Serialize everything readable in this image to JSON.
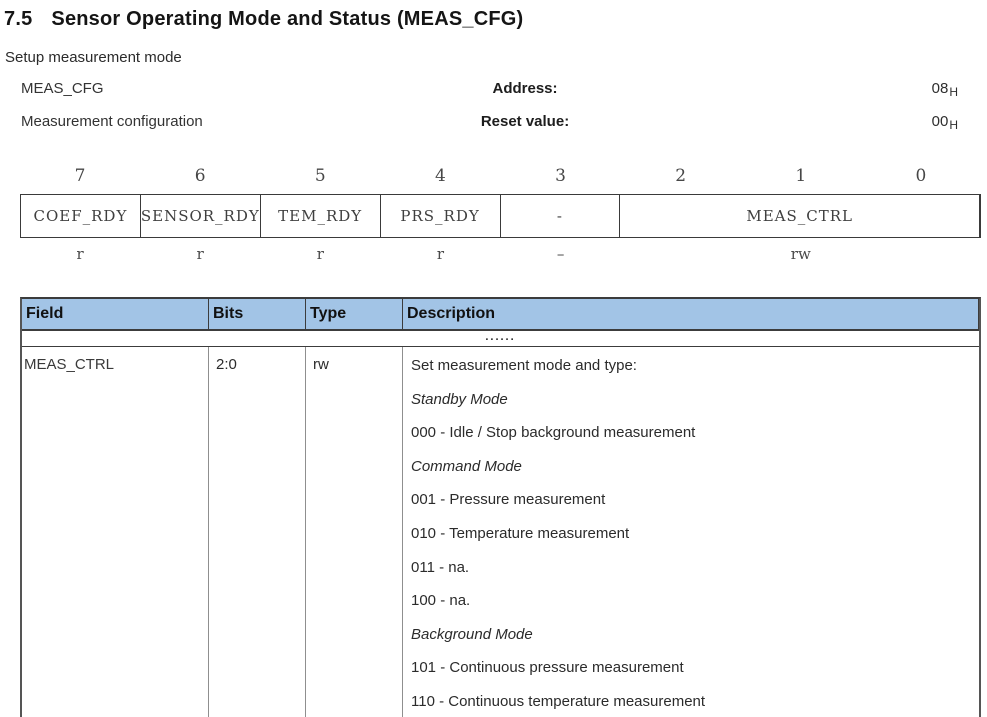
{
  "page": {
    "heading_number": "7.5",
    "heading_title": "Sensor Operating Mode and Status (MEAS_CFG)",
    "subtitle": "Setup measurement mode"
  },
  "register_info": {
    "rows": [
      {
        "label": "MEAS_CFG",
        "key": "Address:",
        "value": "08",
        "value_sub": "H"
      },
      {
        "label": "Measurement configuration",
        "key": "Reset value:",
        "value": "00",
        "value_sub": "H"
      }
    ]
  },
  "bitfield": {
    "bit_numbers": [
      "7",
      "6",
      "5",
      "4",
      "3",
      "2",
      "1",
      "0"
    ],
    "cells": [
      {
        "label": "COEF_RDY",
        "span": 1,
        "access": "r"
      },
      {
        "label": "SENSOR_RDY",
        "span": 1,
        "access": "r"
      },
      {
        "label": "TEM_RDY",
        "span": 1,
        "access": "r"
      },
      {
        "label": "PRS_RDY",
        "span": 1,
        "access": "r"
      },
      {
        "label": "-",
        "span": 1,
        "access": "–"
      },
      {
        "label": "MEAS_CTRL",
        "span": 3,
        "access": "rw"
      }
    ]
  },
  "table": {
    "headers": [
      "Field",
      "Bits",
      "Type",
      "Description"
    ],
    "ellipsis_row": "......",
    "row": {
      "field": "MEAS_CTRL",
      "bits": "2:0",
      "type": "rw",
      "description_lines": [
        {
          "text": "Set measurement mode and type:",
          "style": "normal"
        },
        {
          "text": "Standby Mode",
          "style": "italic"
        },
        {
          "text": "000 - Idle / Stop background measurement",
          "style": "normal"
        },
        {
          "text": "Command Mode",
          "style": "italic"
        },
        {
          "text": "001 - Pressure measurement",
          "style": "normal"
        },
        {
          "text": "010 - Temperature measurement",
          "style": "normal"
        },
        {
          "text": "011 - na.",
          "style": "normal"
        },
        {
          "text": "100 - na.",
          "style": "normal"
        },
        {
          "text": "Background Mode",
          "style": "italic"
        },
        {
          "text": "101 - Continuous pressure measurement",
          "style": "normal"
        },
        {
          "text": "110 - Continuous temperature measurement",
          "style": "normal"
        }
      ]
    }
  },
  "colors": {
    "table_header_bg": "#a2c4e6",
    "border_dark": "#3c3c3c",
    "border_light": "#8f8f8f",
    "text": "#1d1d1d"
  }
}
